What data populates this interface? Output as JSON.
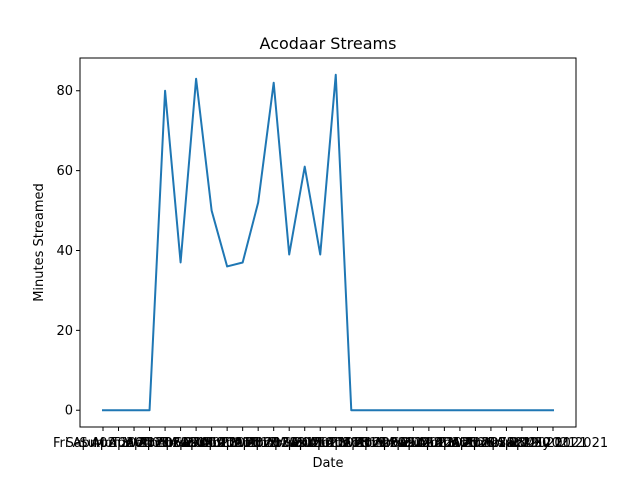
{
  "chart_data": {
    "type": "line",
    "title": "Acodaar Streams",
    "xlabel": "Date",
    "ylabel": "Minutes Streamed",
    "ylim": [
      -4.2,
      88.2
    ],
    "yticks": [
      0,
      20,
      40,
      60,
      80
    ],
    "grid": false,
    "line_color": "#1f77b4",
    "x": [
      "Fri Apr 02 2021",
      "Sat Apr 03 2021",
      "Sun Apr 04 2021",
      "Mon Apr 05 2021",
      "Tue Apr 06 2021",
      "Wed Apr 07 2021",
      "Thu Apr 08 2021",
      "Fri Apr 09 2021",
      "Sat Apr 10 2021",
      "Sun Apr 11 2021",
      "Mon Apr 12 2021",
      "Tue Apr 13 2021",
      "Wed Apr 14 2021",
      "Thu Apr 15 2021",
      "Fri Apr 16 2021",
      "Sat Apr 17 2021",
      "Sun Apr 18 2021",
      "Mon Apr 19 2021",
      "Tue Apr 20 2021",
      "Wed Apr 21 2021",
      "Thu Apr 22 2021",
      "Fri Apr 23 2021",
      "Sat Apr 24 2021",
      "Sun Apr 25 2021",
      "Mon Apr 26 2021",
      "Tue Apr 27 2021",
      "Wed Apr 28 2021",
      "Thu Apr 29 2021",
      "Fri Apr 30 2021",
      "Sat May 01 2021"
    ],
    "series": [
      {
        "values": [
          0,
          0,
          0,
          0,
          80,
          37,
          83,
          50,
          36,
          37,
          52,
          82,
          39,
          61,
          39,
          84,
          0,
          0,
          0,
          0,
          0,
          0,
          0,
          0,
          0,
          0,
          0,
          0,
          0,
          0
        ]
      }
    ]
  }
}
